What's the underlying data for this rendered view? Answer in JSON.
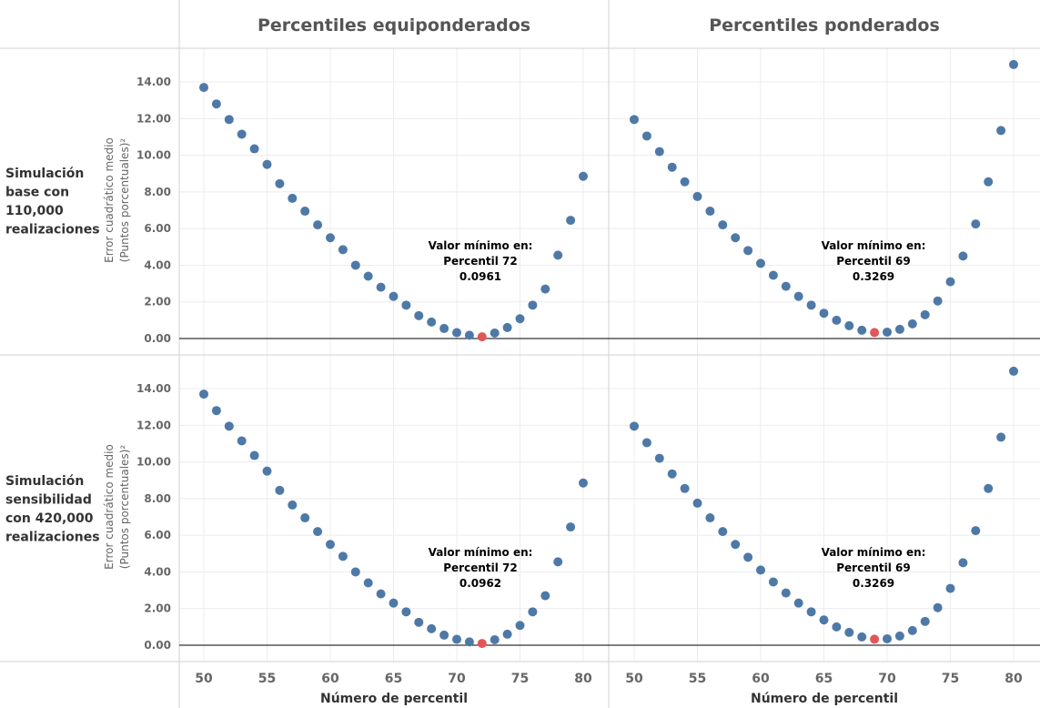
{
  "chart_data": {
    "type": "scatter",
    "columns": [
      "Percentiles equiponderados",
      "Percentiles ponderados"
    ],
    "rows": [
      [
        "Simulación",
        "base con",
        "110,000",
        "realizaciones"
      ],
      [
        "Simulación",
        "sensibilidad",
        "con 420,000",
        "realizaciones"
      ]
    ],
    "ylabel": [
      "Error cuadrático medio",
      "(Puntos porcentuales)²"
    ],
    "xlabel": "Número de percentil",
    "x_ticks": [
      50,
      55,
      60,
      65,
      70,
      75,
      80
    ],
    "y_ticks": [
      "0.00",
      "2.00",
      "4.00",
      "6.00",
      "8.00",
      "10.00",
      "12.00",
      "14.00"
    ],
    "xlim": [
      48.5,
      81.5
    ],
    "ylim": [
      -0.2,
      15.5
    ],
    "x": [
      50,
      51,
      52,
      53,
      54,
      55,
      56,
      57,
      58,
      59,
      60,
      61,
      62,
      63,
      64,
      65,
      66,
      67,
      68,
      69,
      70,
      71,
      72,
      73,
      74,
      75,
      76,
      77,
      78,
      79,
      80
    ],
    "colors": {
      "point": "#4e79a7",
      "highlight": "#e15759",
      "grid": "#ececec",
      "axis": "#000000"
    },
    "panels": [
      {
        "row": 0,
        "col": 0,
        "values": [
          13.7,
          12.8,
          11.95,
          11.15,
          10.35,
          9.5,
          8.45,
          7.65,
          6.95,
          6.2,
          5.5,
          4.85,
          4.0,
          3.4,
          2.8,
          2.3,
          1.82,
          1.25,
          0.9,
          0.55,
          0.32,
          0.18,
          0.0961,
          0.3,
          0.6,
          1.08,
          1.82,
          2.7,
          4.55,
          6.45,
          8.85
        ],
        "min_x": 72,
        "annotation": [
          "Valor mínimo en:",
          "Percentil 72",
          "0.0961"
        ]
      },
      {
        "row": 0,
        "col": 1,
        "values": [
          11.95,
          11.05,
          10.2,
          9.35,
          8.55,
          7.75,
          6.95,
          6.2,
          5.5,
          4.8,
          4.1,
          3.45,
          2.85,
          2.3,
          1.82,
          1.38,
          1.0,
          0.7,
          0.45,
          0.3269,
          0.35,
          0.5,
          0.8,
          1.3,
          2.05,
          3.1,
          4.5,
          6.25,
          8.55,
          11.35,
          14.95
        ],
        "min_x": 69,
        "annotation": [
          "Valor mínimo en:",
          "Percentil 69",
          "0.3269"
        ]
      },
      {
        "row": 1,
        "col": 0,
        "values": [
          13.7,
          12.8,
          11.95,
          11.15,
          10.35,
          9.5,
          8.45,
          7.65,
          6.95,
          6.2,
          5.5,
          4.85,
          4.0,
          3.4,
          2.8,
          2.3,
          1.82,
          1.25,
          0.9,
          0.55,
          0.32,
          0.18,
          0.0962,
          0.3,
          0.6,
          1.08,
          1.82,
          2.7,
          4.55,
          6.45,
          8.85
        ],
        "min_x": 72,
        "annotation": [
          "Valor mínimo en:",
          "Percentil 72",
          "0.0962"
        ]
      },
      {
        "row": 1,
        "col": 1,
        "values": [
          11.95,
          11.05,
          10.2,
          9.35,
          8.55,
          7.75,
          6.95,
          6.2,
          5.5,
          4.8,
          4.1,
          3.45,
          2.85,
          2.3,
          1.82,
          1.38,
          1.0,
          0.7,
          0.45,
          0.3269,
          0.35,
          0.5,
          0.8,
          1.3,
          2.05,
          3.1,
          4.5,
          6.25,
          8.55,
          11.35,
          14.95
        ],
        "min_x": 69,
        "annotation": [
          "Valor mínimo en:",
          "Percentil 69",
          "0.3269"
        ]
      }
    ]
  }
}
